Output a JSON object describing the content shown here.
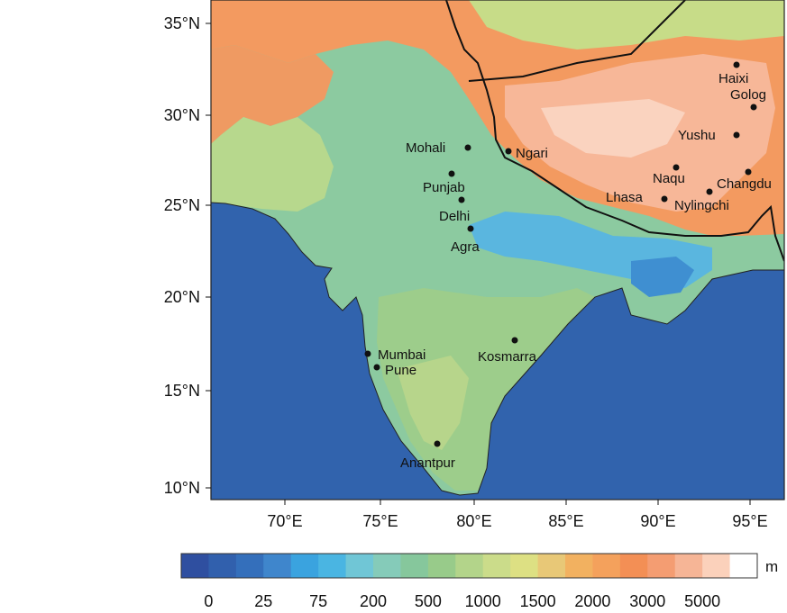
{
  "axes": {
    "lat_ticks": [
      "35°N",
      "30°N",
      "25°N",
      "20°N",
      "15°N",
      "10°N"
    ],
    "lon_ticks": [
      "70°E",
      "75°E",
      "80°E",
      "85°E",
      "90°E",
      "95°E"
    ]
  },
  "places": [
    {
      "name": "Haixi"
    },
    {
      "name": "Golog"
    },
    {
      "name": "Yushu"
    },
    {
      "name": "Changdu"
    },
    {
      "name": "Naqu"
    },
    {
      "name": "Lhasa"
    },
    {
      "name": "Nylingchi"
    },
    {
      "name": "Ngari"
    },
    {
      "name": "Mohali"
    },
    {
      "name": "Punjab"
    },
    {
      "name": "Delhi"
    },
    {
      "name": "Agra"
    },
    {
      "name": "Kosmarra"
    },
    {
      "name": "Mumbai"
    },
    {
      "name": "Pune"
    },
    {
      "name": "Anantpur"
    }
  ],
  "colorbar": {
    "unit": "m",
    "tick_labels": [
      "0",
      "25",
      "75",
      "200",
      "500",
      "1000",
      "1500",
      "2000",
      "3000",
      "5000"
    ],
    "colors": [
      "#2f4fa0",
      "#3160ad",
      "#346fbb",
      "#3f86cc",
      "#3aa3df",
      "#4ab5e2",
      "#70c6d6",
      "#85cbb9",
      "#86c79c",
      "#98cb8a",
      "#b3d48a",
      "#cbdc8a",
      "#dde083",
      "#e8c877",
      "#f2b160",
      "#f4a15c",
      "#f38f55",
      "#f49d72",
      "#f6b596",
      "#fbd1bb",
      "#ffffff"
    ]
  }
}
